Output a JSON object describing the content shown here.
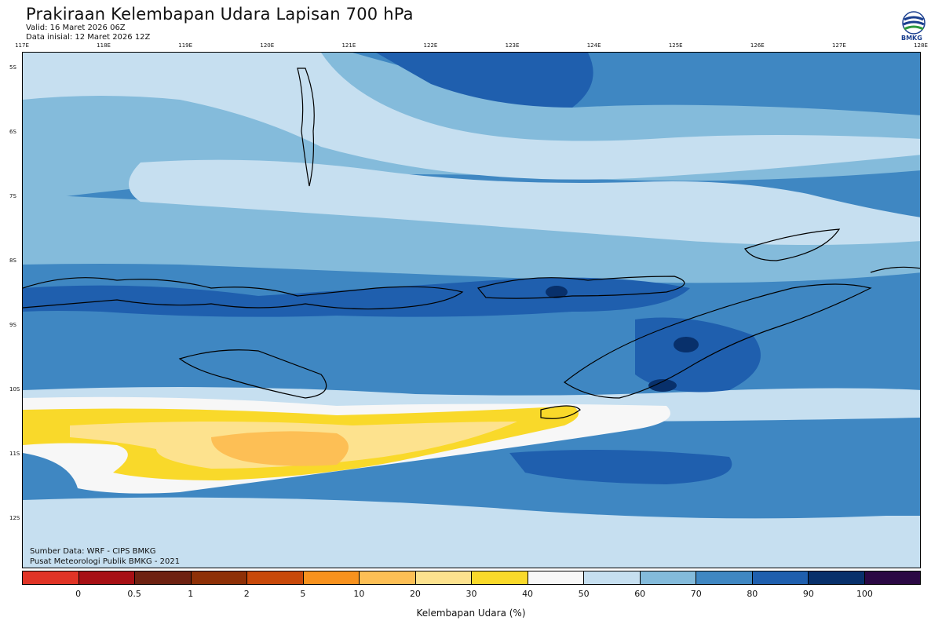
{
  "header": {
    "title": "Prakiraan Kelembapan Udara Lapisan 700 hPa",
    "valid": "Valid: 16 Maret 2026 06Z",
    "initial": "Data inisial: 12 Maret 2026 12Z"
  },
  "logo": {
    "text": "BMKG",
    "icon": "bmkg-logo-icon"
  },
  "map": {
    "lon_labels": [
      "117E",
      "118E",
      "119E",
      "120E",
      "121E",
      "122E",
      "123E",
      "124E",
      "125E",
      "126E",
      "127E",
      "128E"
    ],
    "lat_labels": [
      "5S",
      "6S",
      "7S",
      "8S",
      "9S",
      "10S",
      "11S",
      "12S"
    ],
    "colors": {
      "c100": "#08306b",
      "c90": "#1f5fae",
      "c80": "#3f87c2",
      "c70": "#84bbdb",
      "c60": "#c6dff0",
      "c50": "#f7f7f7",
      "c40": "#f9d92a",
      "c30": "#fde28e",
      "c20": "#fdbf55",
      "coast": "#000000"
    }
  },
  "credits": {
    "source": "Sumber Data: WRF - CIPS BMKG",
    "publisher": "Pusat Meteorologi Publik BMKG - 2021"
  },
  "legend": {
    "title": "Kelembapan Udara (%)",
    "ticks": [
      "0",
      "0.5",
      "1",
      "2",
      "5",
      "10",
      "20",
      "30",
      "40",
      "50",
      "60",
      "70",
      "80",
      "90",
      "100"
    ],
    "colors": [
      "#e03426",
      "#a71015",
      "#6e2212",
      "#8e3007",
      "#c8490a",
      "#f8921e",
      "#fdbf55",
      "#fde28e",
      "#f9d92a",
      "#f7f7f7",
      "#c6dff0",
      "#84bbdb",
      "#3f87c2",
      "#1f5fae",
      "#08306b",
      "#2b0844"
    ]
  }
}
